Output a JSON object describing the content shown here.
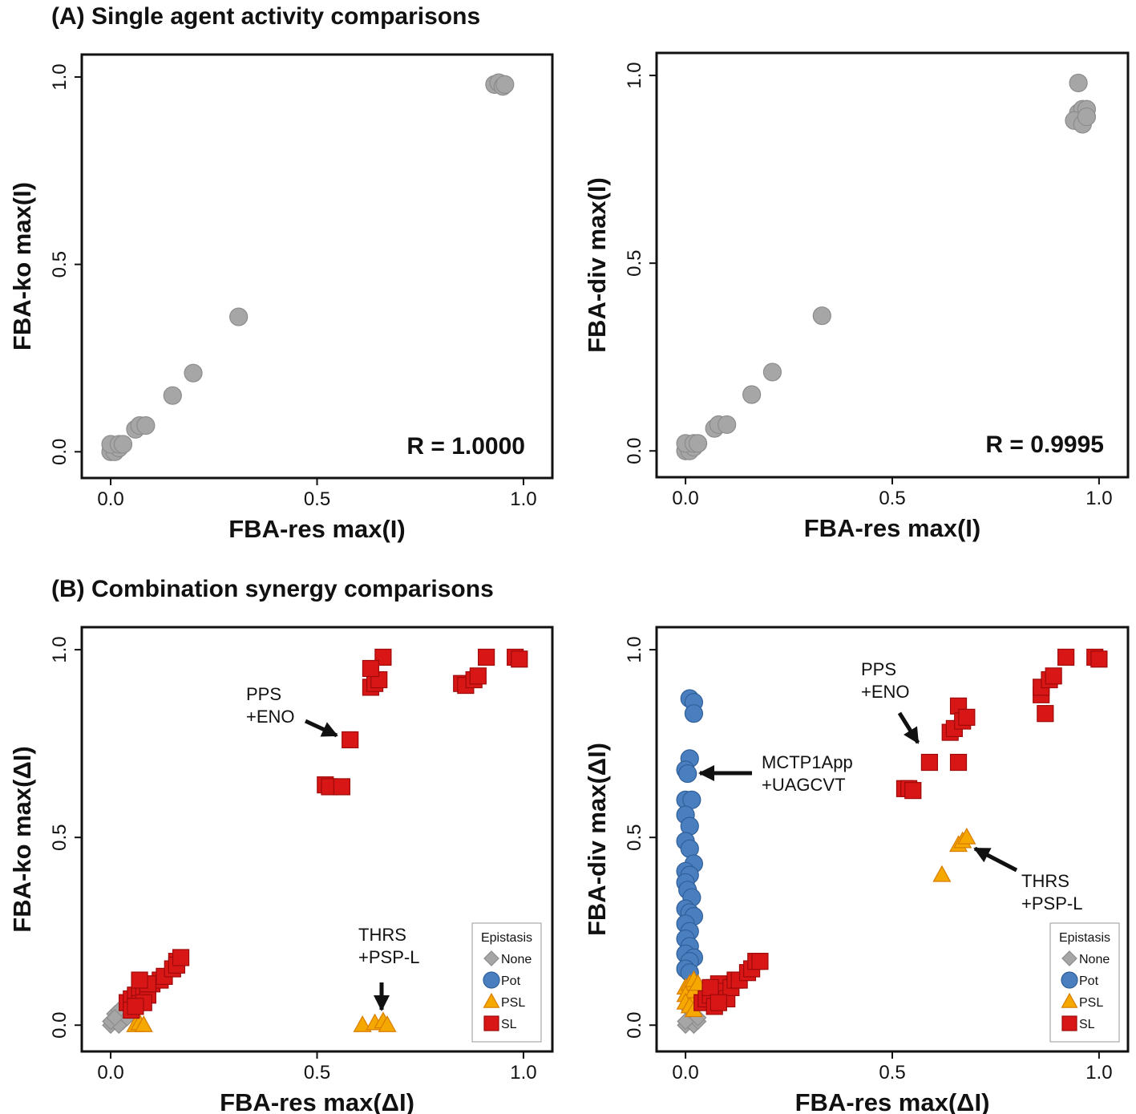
{
  "headings": {
    "a": "(A) Single agent activity comparisons",
    "b": "(B) Combination synergy comparisons"
  },
  "styles": {
    "None": {
      "shape": "diamond",
      "fill": "#a6a6a6",
      "stroke": "#8c8c8c"
    },
    "Pot": {
      "shape": "circle",
      "fill": "#4a7fbf",
      "stroke": "#2f5f99"
    },
    "PSL": {
      "shape": "triangle",
      "fill": "#f5a800",
      "stroke": "#d97c00"
    },
    "SL": {
      "shape": "square",
      "fill": "#d91616",
      "stroke": "#9e0a0a"
    },
    "single": {
      "shape": "circle",
      "fill": "#a6a6a6",
      "stroke": "#8c8c8c"
    }
  },
  "chart_data": [
    {
      "type": "scatter",
      "xlabel": "FBA-res max(I)",
      "ylabel": "FBA-ko max(I)",
      "xlim": [
        -0.07,
        1.07
      ],
      "ylim": [
        -0.07,
        1.06
      ],
      "xticks": [
        "0.0",
        "0.5",
        "1.0"
      ],
      "yticks": [
        "0.0",
        "0.5",
        "1.0"
      ],
      "annotation": "R = 1.0000",
      "series": [
        {
          "style": "single",
          "points": [
            [
              0,
              0
            ],
            [
              0.01,
              0
            ],
            [
              0.02,
              0.01
            ],
            [
              0,
              0.02
            ],
            [
              0.02,
              0.02
            ],
            [
              0.03,
              0.02
            ],
            [
              0.06,
              0.06
            ],
            [
              0.07,
              0.07
            ],
            [
              0.085,
              0.07
            ],
            [
              0.15,
              0.15
            ],
            [
              0.2,
              0.21
            ],
            [
              0.31,
              0.36
            ],
            [
              0.93,
              0.98
            ],
            [
              0.94,
              0.985
            ],
            [
              0.95,
              0.975
            ],
            [
              0.955,
              0.98
            ]
          ]
        }
      ]
    },
    {
      "type": "scatter",
      "xlabel": "FBA-res max(I)",
      "ylabel": "FBA-div max(I)",
      "xlim": [
        -0.07,
        1.07
      ],
      "ylim": [
        -0.07,
        1.06
      ],
      "xticks": [
        "0.0",
        "0.5",
        "1.0"
      ],
      "yticks": [
        "0.0",
        "0.5",
        "1.0"
      ],
      "annotation": "R = 0.9995",
      "series": [
        {
          "style": "single",
          "points": [
            [
              0,
              0
            ],
            [
              0.01,
              0
            ],
            [
              0.02,
              0.01
            ],
            [
              0,
              0.02
            ],
            [
              0.02,
              0.02
            ],
            [
              0.03,
              0.02
            ],
            [
              0.07,
              0.06
            ],
            [
              0.08,
              0.07
            ],
            [
              0.1,
              0.07
            ],
            [
              0.16,
              0.15
            ],
            [
              0.21,
              0.21
            ],
            [
              0.33,
              0.36
            ],
            [
              0.95,
              0.98
            ],
            [
              0.95,
              0.9
            ],
            [
              0.96,
              0.91
            ],
            [
              0.97,
              0.91
            ],
            [
              0.94,
              0.88
            ],
            [
              0.96,
              0.87
            ],
            [
              0.97,
              0.89
            ]
          ]
        }
      ]
    },
    {
      "type": "scatter",
      "xlabel": "FBA-res max(ΔI)",
      "ylabel": "FBA-ko max(ΔI)",
      "xlim": [
        -0.07,
        1.07
      ],
      "ylim": [
        -0.07,
        1.06
      ],
      "xticks": [
        "0.0",
        "0.5",
        "1.0"
      ],
      "yticks": [
        "0.0",
        "0.5",
        "1.0"
      ],
      "legend": {
        "title": "Epistasis",
        "entries": [
          "None",
          "Pot",
          "PSL",
          "SL"
        ],
        "position": "bottom-right"
      },
      "annotations": [
        {
          "lines": [
            "PPS",
            "+ENO"
          ],
          "point": [
            0.58,
            0.76
          ]
        },
        {
          "lines": [
            "THRS",
            "+PSP-L"
          ],
          "point": [
            0.66,
            0.01
          ]
        }
      ],
      "series": [
        {
          "name": "None",
          "points": [
            [
              0,
              0
            ],
            [
              0.01,
              0.01
            ],
            [
              0.02,
              0.02
            ],
            [
              0.01,
              0.03
            ],
            [
              0.03,
              0.01
            ],
            [
              0.02,
              0
            ],
            [
              0,
              0.01
            ],
            [
              0.03,
              0.03
            ],
            [
              0.04,
              0.02
            ],
            [
              0.02,
              0.04
            ],
            [
              0.01,
              0.02
            ]
          ]
        },
        {
          "name": "PSL",
          "points": [
            [
              0.06,
              0
            ],
            [
              0.07,
              0.005
            ],
            [
              0.08,
              0
            ],
            [
              0.61,
              0
            ],
            [
              0.64,
              0.005
            ],
            [
              0.66,
              0.01
            ],
            [
              0.67,
              0
            ]
          ]
        },
        {
          "name": "SL",
          "points": [
            [
              0.04,
              0.06
            ],
            [
              0.05,
              0.07
            ],
            [
              0.06,
              0.08
            ],
            [
              0.07,
              0.09
            ],
            [
              0.07,
              0.1
            ],
            [
              0.08,
              0.1
            ],
            [
              0.09,
              0.08
            ],
            [
              0.08,
              0.06
            ],
            [
              0.05,
              0.04
            ],
            [
              0.06,
              0.05
            ],
            [
              0.1,
              0.11
            ],
            [
              0.12,
              0.12
            ],
            [
              0.13,
              0.13
            ],
            [
              0.15,
              0.15
            ],
            [
              0.16,
              0.17
            ],
            [
              0.16,
              0.16
            ],
            [
              0.17,
              0.18
            ],
            [
              0.09,
              0.11
            ],
            [
              0.07,
              0.12
            ],
            [
              0.58,
              0.76
            ],
            [
              0.52,
              0.64
            ],
            [
              0.53,
              0.635
            ],
            [
              0.56,
              0.635
            ],
            [
              0.63,
              0.9
            ],
            [
              0.64,
              0.91
            ],
            [
              0.65,
              0.92
            ],
            [
              0.66,
              0.98
            ],
            [
              0.63,
              0.95
            ],
            [
              0.85,
              0.91
            ],
            [
              0.86,
              0.905
            ],
            [
              0.88,
              0.92
            ],
            [
              0.89,
              0.93
            ],
            [
              0.91,
              0.98
            ],
            [
              0.98,
              0.98
            ],
            [
              0.99,
              0.975
            ]
          ]
        }
      ]
    },
    {
      "type": "scatter",
      "xlabel": "FBA-res max(ΔI)",
      "ylabel": "FBA-div max(ΔI)",
      "xlim": [
        -0.07,
        1.07
      ],
      "ylim": [
        -0.07,
        1.06
      ],
      "xticks": [
        "0.0",
        "0.5",
        "1.0"
      ],
      "yticks": [
        "0.0",
        "0.5",
        "1.0"
      ],
      "legend": {
        "title": "Epistasis",
        "entries": [
          "None",
          "Pot",
          "PSL",
          "SL"
        ],
        "position": "bottom-right"
      },
      "annotations": [
        {
          "lines": [
            "PPS",
            "+ENO"
          ],
          "point": [
            0.59,
            0.7
          ]
        },
        {
          "lines": [
            "MCTP1App",
            "+UAGCVT"
          ],
          "point": [
            0.02,
            0.67
          ]
        },
        {
          "lines": [
            "THRS",
            "+PSP-L"
          ],
          "point": [
            0.68,
            0.48
          ]
        }
      ],
      "series": [
        {
          "name": "None",
          "points": [
            [
              0,
              0
            ],
            [
              0.01,
              0.01
            ],
            [
              0.02,
              0
            ],
            [
              0.01,
              0.02
            ],
            [
              0.02,
              0.03
            ],
            [
              0.03,
              0.01
            ],
            [
              0,
              0.01
            ],
            [
              0.03,
              0.02
            ],
            [
              0.01,
              0.04
            ]
          ]
        },
        {
          "name": "Pot",
          "points": [
            [
              0.01,
              0.87
            ],
            [
              0.02,
              0.86
            ],
            [
              0.02,
              0.83
            ],
            [
              0.01,
              0.71
            ],
            [
              0.0,
              0.68
            ],
            [
              0.005,
              0.67
            ],
            [
              0.0,
              0.6
            ],
            [
              0.015,
              0.6
            ],
            [
              0.0,
              0.56
            ],
            [
              0.01,
              0.53
            ],
            [
              0.0,
              0.49
            ],
            [
              0.01,
              0.47
            ],
            [
              0.02,
              0.43
            ],
            [
              0.0,
              0.41
            ],
            [
              0.01,
              0.4
            ],
            [
              0.0,
              0.38
            ],
            [
              0.005,
              0.36
            ],
            [
              0.015,
              0.34
            ],
            [
              0.0,
              0.31
            ],
            [
              0.01,
              0.3
            ],
            [
              0.02,
              0.29
            ],
            [
              0.0,
              0.27
            ],
            [
              0.01,
              0.25
            ],
            [
              0.0,
              0.23
            ],
            [
              0.01,
              0.21
            ],
            [
              0.0,
              0.19
            ],
            [
              0.02,
              0.18
            ],
            [
              0.01,
              0.17
            ],
            [
              0.0,
              0.15
            ],
            [
              0.01,
              0.14
            ]
          ]
        },
        {
          "name": "PSL",
          "points": [
            [
              0.0,
              0.1
            ],
            [
              0.01,
              0.11
            ],
            [
              0.02,
              0.12
            ],
            [
              0.0,
              0.08
            ],
            [
              0.01,
              0.07
            ],
            [
              0.02,
              0.09
            ],
            [
              0.0,
              0.06
            ],
            [
              0.01,
              0.05
            ],
            [
              0.02,
              0.04
            ],
            [
              0.03,
              0.11
            ],
            [
              0.62,
              0.4
            ],
            [
              0.66,
              0.48
            ],
            [
              0.67,
              0.49
            ],
            [
              0.68,
              0.5
            ]
          ]
        },
        {
          "name": "SL",
          "points": [
            [
              0.04,
              0.06
            ],
            [
              0.05,
              0.07
            ],
            [
              0.06,
              0.08
            ],
            [
              0.07,
              0.1
            ],
            [
              0.07,
              0.05
            ],
            [
              0.08,
              0.11
            ],
            [
              0.09,
              0.09
            ],
            [
              0.1,
              0.07
            ],
            [
              0.11,
              0.1
            ],
            [
              0.12,
              0.12
            ],
            [
              0.13,
              0.12
            ],
            [
              0.15,
              0.14
            ],
            [
              0.16,
              0.15
            ],
            [
              0.17,
              0.17
            ],
            [
              0.18,
              0.17
            ],
            [
              0.06,
              0.1
            ],
            [
              0.08,
              0.06
            ],
            [
              0.59,
              0.7
            ],
            [
              0.53,
              0.63
            ],
            [
              0.54,
              0.63
            ],
            [
              0.55,
              0.625
            ],
            [
              0.64,
              0.78
            ],
            [
              0.65,
              0.79
            ],
            [
              0.66,
              0.85
            ],
            [
              0.67,
              0.81
            ],
            [
              0.68,
              0.82
            ],
            [
              0.66,
              0.7
            ],
            [
              0.86,
              0.88
            ],
            [
              0.86,
              0.9
            ],
            [
              0.87,
              0.83
            ],
            [
              0.88,
              0.92
            ],
            [
              0.89,
              0.93
            ],
            [
              0.92,
              0.98
            ],
            [
              0.99,
              0.98
            ],
            [
              1.0,
              0.975
            ]
          ]
        }
      ]
    }
  ]
}
